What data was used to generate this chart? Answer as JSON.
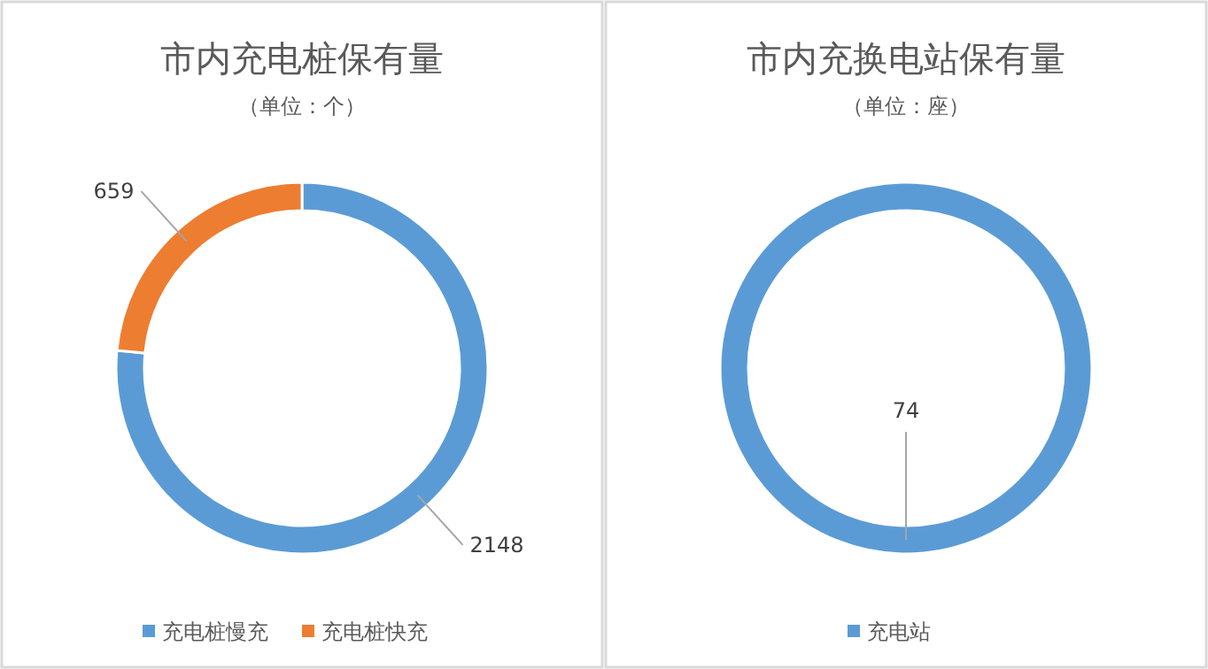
{
  "chart_data": [
    {
      "type": "donut",
      "title": "市内充电桩保有量",
      "subtitle": "（单位：个）",
      "categories": [
        "充电桩慢充",
        "充电桩快充"
      ],
      "values": [
        2148,
        659
      ],
      "colors": [
        "#5b9bd5",
        "#ed7d31"
      ],
      "data_labels": true,
      "legend": "bottom"
    },
    {
      "type": "donut",
      "title": "市内充换电站保有量",
      "subtitle": "（单位：座）",
      "categories": [
        "充电站"
      ],
      "values": [
        74
      ],
      "colors": [
        "#5b9bd5"
      ],
      "data_labels": true,
      "legend": "bottom"
    }
  ]
}
